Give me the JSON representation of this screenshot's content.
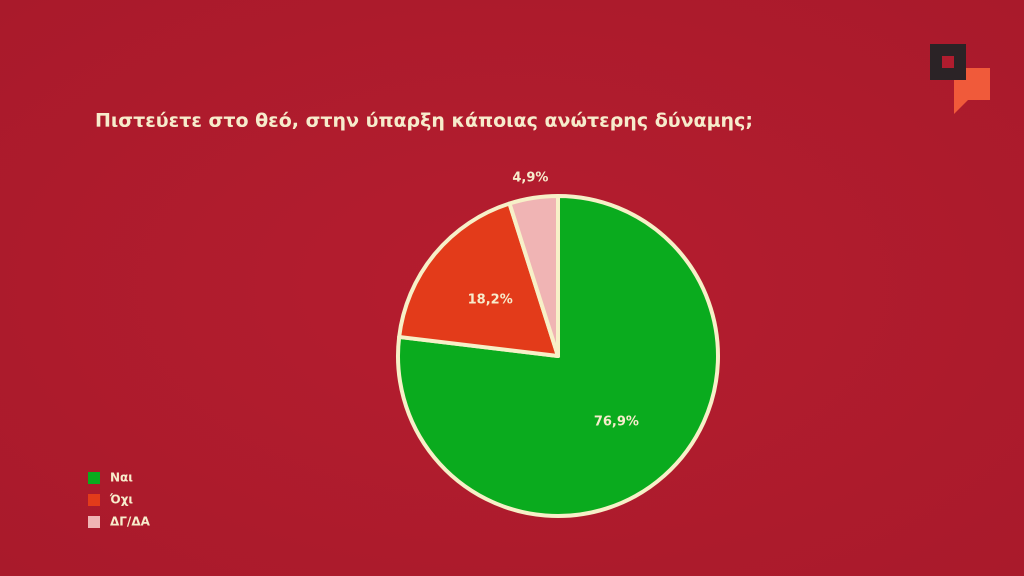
{
  "chart_data": {
    "type": "pie",
    "title": "Πιστεύετε στο θεό, στην ύπαρξη κάποιας ανώτερης δύναμης;",
    "categories": [
      "Ναι",
      "Όχι",
      "ΔΓ/ΔΑ"
    ],
    "values": [
      76.9,
      18.2,
      4.9
    ],
    "value_labels": [
      "76,9%",
      "18,2%",
      "4,9%"
    ],
    "colors": [
      "#0aab1e",
      "#e33b1a",
      "#f0b4b4"
    ],
    "legend": "bottom-left"
  }
}
